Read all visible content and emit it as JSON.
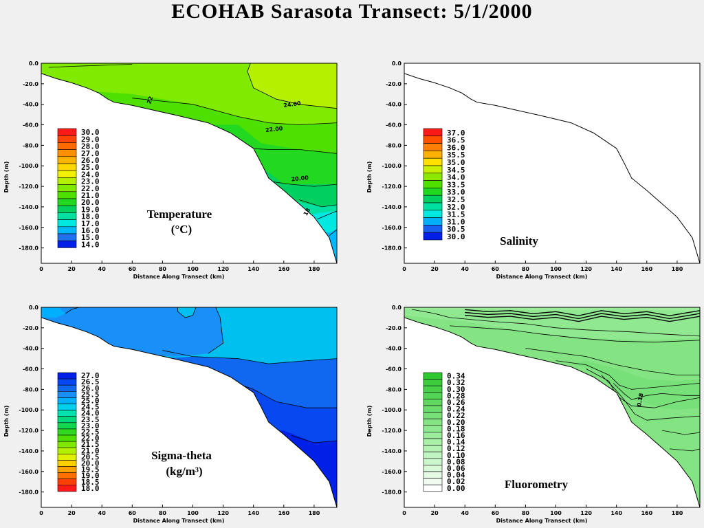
{
  "title": "ECOHAB Sarasota Transect: 5/1/2000",
  "chart_data": [
    {
      "type": "heatmap",
      "id": "temperature",
      "title_lines": [
        "Temperature",
        "(°C)"
      ],
      "xlabel": "Distance Along Transect (km)",
      "ylabel": "Depth (m)",
      "xlim": [
        0,
        195
      ],
      "ylim": [
        -195,
        0
      ],
      "xticks": [
        "0",
        "20",
        "40",
        "60",
        "80",
        "100",
        "120",
        "140",
        "160",
        "180"
      ],
      "yticks": [
        "0.0",
        "-20.0",
        "-40.0",
        "-60.0",
        "-80.0",
        "-100.0",
        "-120.0",
        "-140.0",
        "-160.0",
        "-180.0"
      ],
      "legend_levels": [
        "30.0",
        "29.0",
        "28.0",
        "27.0",
        "26.0",
        "25.0",
        "24.0",
        "23.0",
        "22.0",
        "21.0",
        "20.0",
        "19.0",
        "18.0",
        "17.0",
        "16.0",
        "15.0",
        "14.0"
      ],
      "legend_colors": [
        "#ff1a1a",
        "#ff4400",
        "#ff6a00",
        "#ff9000",
        "#ffb400",
        "#ffd800",
        "#f0f000",
        "#b4f000",
        "#80ea00",
        "#4ee000",
        "#22d820",
        "#00d060",
        "#00e0a0",
        "#00e8e0",
        "#00b8ff",
        "#2070f0",
        "#0020e8"
      ],
      "contour_labels": [
        "24.00",
        "22.00",
        "20.00",
        "22",
        "18"
      ]
    },
    {
      "type": "heatmap",
      "id": "salinity",
      "title_lines": [
        "Salinity"
      ],
      "xlabel": "Distance Along Transect (km)",
      "ylabel": "Depth (m)",
      "xlim": [
        0,
        195
      ],
      "ylim": [
        -195,
        0
      ],
      "xticks": [
        "0",
        "20",
        "40",
        "60",
        "80",
        "100",
        "120",
        "140",
        "160",
        "180"
      ],
      "yticks": [
        "0.0",
        "-20.0",
        "-40.0",
        "-60.0",
        "-80.0",
        "-100.0",
        "-120.0",
        "-140.0",
        "-160.0",
        "-180.0"
      ],
      "legend_levels": [
        "37.0",
        "36.5",
        "36.0",
        "35.5",
        "35.0",
        "34.5",
        "34.0",
        "33.5",
        "33.0",
        "32.5",
        "32.0",
        "31.5",
        "31.0",
        "30.5",
        "30.0"
      ],
      "legend_colors": [
        "#ff1a1a",
        "#ff5000",
        "#ff8000",
        "#ffb000",
        "#ffe000",
        "#c8f000",
        "#8ce800",
        "#50e000",
        "#20d820",
        "#00d060",
        "#00e0a0",
        "#00e8e0",
        "#00b0ff",
        "#1860f0",
        "#0020e8"
      ]
    },
    {
      "type": "heatmap",
      "id": "sigma-theta",
      "title_lines": [
        "Sigma-theta",
        "(kg/m³)"
      ],
      "xlabel": "Distance Along Transect (km)",
      "ylabel": "Depth (m)",
      "xlim": [
        0,
        195
      ],
      "ylim": [
        -195,
        0
      ],
      "xticks": [
        "0",
        "20",
        "40",
        "60",
        "80",
        "100",
        "120",
        "140",
        "160",
        "180"
      ],
      "yticks": [
        "0.0",
        "-20.0",
        "-40.0",
        "-60.0",
        "-80.0",
        "-100.0",
        "-120.0",
        "-140.0",
        "-160.0",
        "-180.0"
      ],
      "legend_levels": [
        "27.0",
        "26.5",
        "26.0",
        "25.5",
        "25.0",
        "24.5",
        "24.0",
        "23.5",
        "23.0",
        "22.5",
        "22.0",
        "21.5",
        "21.0",
        "20.5",
        "20.0",
        "19.5",
        "19.0",
        "18.5",
        "18.0"
      ],
      "legend_colors": [
        "#0020e8",
        "#0848f0",
        "#1068f0",
        "#1890f8",
        "#00b0ff",
        "#00d0f0",
        "#00e0b0",
        "#00d880",
        "#10d850",
        "#30d820",
        "#50e000",
        "#80e800",
        "#b0f000",
        "#e0f000",
        "#ffd000",
        "#ffa000",
        "#ff7000",
        "#ff4000",
        "#ff1a1a"
      ]
    },
    {
      "type": "heatmap",
      "id": "fluorometry",
      "title_lines": [
        "Fluorometry"
      ],
      "xlabel": "Distance Along Transect (km)",
      "ylabel": "Depth (m)",
      "xlim": [
        0,
        195
      ],
      "ylim": [
        -195,
        0
      ],
      "xticks": [
        "0",
        "20",
        "40",
        "60",
        "80",
        "100",
        "120",
        "140",
        "160",
        "180"
      ],
      "yticks": [
        "0.0",
        "-20.0",
        "-40.0",
        "-60.0",
        "-80.0",
        "-100.0",
        "-120.0",
        "-140.0",
        "-160.0",
        "-180.0"
      ],
      "legend_levels": [
        "0.34",
        "0.32",
        "0.30",
        "0.28",
        "0.26",
        "0.24",
        "0.22",
        "0.20",
        "0.18",
        "0.16",
        "0.14",
        "0.12",
        "0.10",
        "0.08",
        "0.06",
        "0.04",
        "0.02",
        "0.00"
      ],
      "legend_colors": [
        "#30c830",
        "#3ccc3c",
        "#48d048",
        "#54d454",
        "#60d860",
        "#6cdc6c",
        "#78e078",
        "#84e484",
        "#90e890",
        "#9cec9c",
        "#a8f0a8",
        "#b4f2b4",
        "#c0f4c0",
        "#ccf6cc",
        "#d8f8d8",
        "#e4fae4",
        "#f0fcf0",
        "#ffffff"
      ],
      "contour_labels": [
        "0.18"
      ]
    }
  ]
}
